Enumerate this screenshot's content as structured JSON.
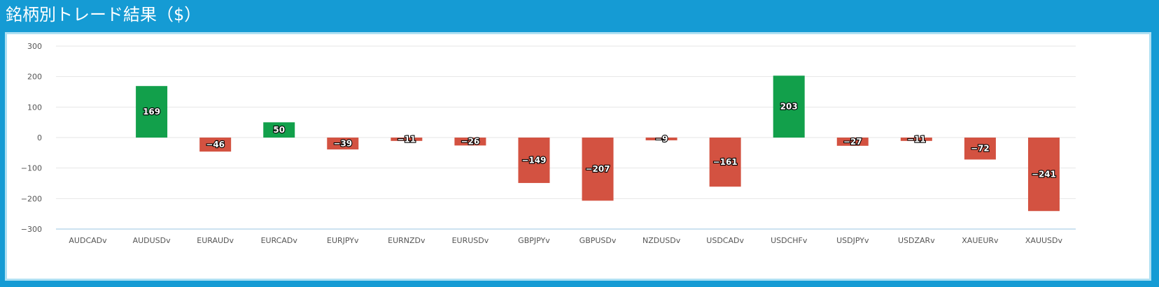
{
  "header": {
    "title": "銘柄別トレード結果（$）"
  },
  "colors": {
    "positive": "#12a04b",
    "negative": "#d35241",
    "background": "#159bd4",
    "grid": "#e6e6e6"
  },
  "chart_data": {
    "type": "bar",
    "title": "銘柄別トレード結果（$）",
    "xlabel": "",
    "ylabel": "",
    "ylim": [
      -300,
      300
    ],
    "yticks": [
      300,
      200,
      100,
      0,
      -100,
      -200,
      -300
    ],
    "ytick_labels": [
      "300",
      "200",
      "100",
      "0",
      "−100",
      "−200",
      "−300"
    ],
    "grid": true,
    "categories": [
      "AUDCADv",
      "AUDUSDv",
      "EURAUDv",
      "EURCADv",
      "EURJPYv",
      "EURNZDv",
      "EURUSDv",
      "GBPJPYv",
      "GBPUSDv",
      "NZDUSDv",
      "USDCADv",
      "USDCHFv",
      "USDJPYv",
      "USDZARv",
      "XAUEURv",
      "XAUUSDv"
    ],
    "values": [
      null,
      169,
      -46,
      50,
      -39,
      -11,
      -26,
      -149,
      -207,
      -9,
      -161,
      203,
      -27,
      -11,
      -72,
      -241
    ],
    "data_labels": [
      "",
      "169",
      "−46",
      "50",
      "−39",
      "−11",
      "−26",
      "−149",
      "−207",
      "−9",
      "−161",
      "203",
      "−27",
      "−11",
      "−72",
      "−241"
    ]
  }
}
